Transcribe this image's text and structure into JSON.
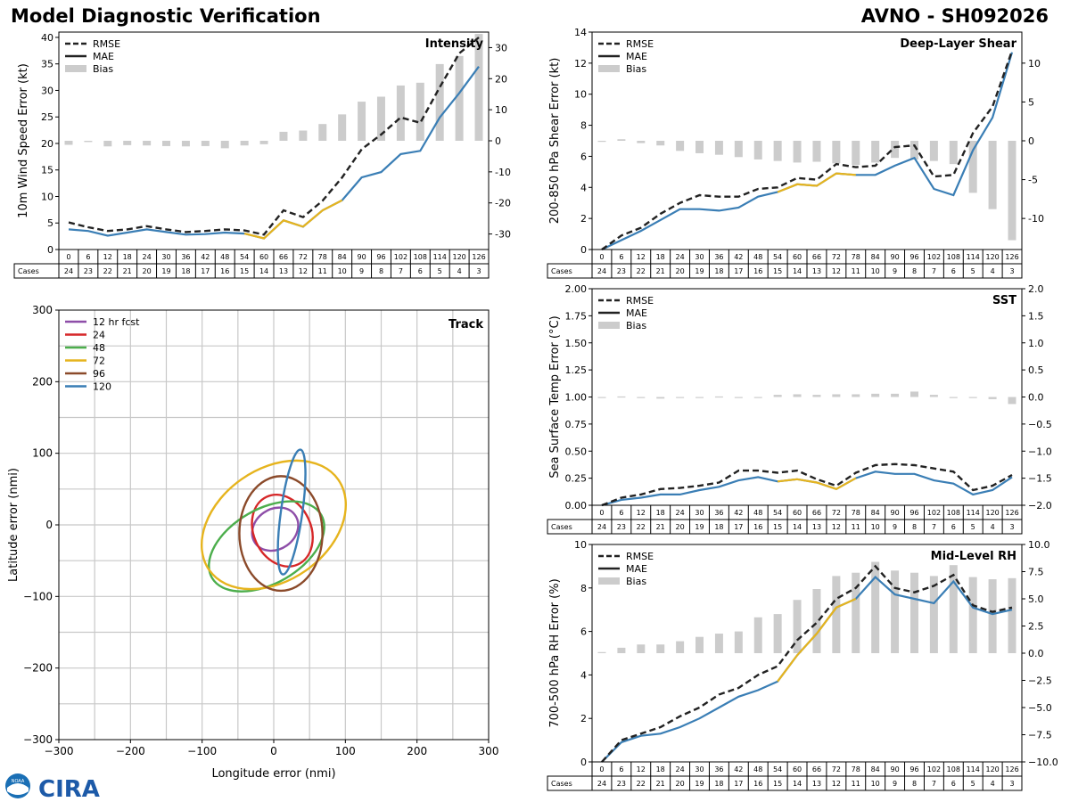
{
  "header": {
    "title": "Model Diagnostic Verification",
    "storm": "AVNO - SH092026"
  },
  "logo": {
    "text": "CIRA",
    "agency": "NOAA"
  },
  "colors": {
    "rmse": "#222222",
    "mae": "#3a7eb5",
    "mae_hl": "#e6b41e",
    "bias": "#cccccc",
    "grid": "#c8c8c8"
  },
  "common": {
    "cases_label": "Cases",
    "hours": [
      0,
      6,
      12,
      18,
      24,
      30,
      36,
      42,
      48,
      54,
      60,
      66,
      72,
      78,
      84,
      90,
      96,
      102,
      108,
      114,
      120,
      126
    ],
    "cases": [
      24,
      23,
      22,
      21,
      20,
      19,
      18,
      17,
      16,
      15,
      14,
      13,
      12,
      11,
      10,
      9,
      8,
      7,
      6,
      5,
      4,
      3
    ],
    "legend": [
      "RMSE",
      "MAE",
      "Bias"
    ]
  },
  "chart_data": [
    {
      "id": "intensity",
      "type": "line",
      "title": "Intensity",
      "ylabel": "10m Wind Speed Error (kt)",
      "ylim": [
        0,
        41
      ],
      "yticks": [
        0,
        5,
        10,
        15,
        20,
        25,
        30,
        35,
        40
      ],
      "y2lim": [
        -35,
        35
      ],
      "y2ticks": [
        -30,
        -20,
        -10,
        0,
        10,
        20,
        30
      ],
      "rmse": [
        5.1,
        4.2,
        3.5,
        3.8,
        4.4,
        3.8,
        3.3,
        3.5,
        3.8,
        3.6,
        2.8,
        7.4,
        6.1,
        9.2,
        13.6,
        18.9,
        21.7,
        24.9,
        23.9,
        30.6,
        37.0,
        40.0
      ],
      "mae": [
        3.8,
        3.5,
        2.6,
        3.2,
        3.8,
        3.3,
        2.8,
        2.9,
        3.2,
        3.0,
        2.1,
        5.5,
        4.3,
        7.4,
        9.3,
        13.6,
        14.6,
        18.0,
        18.6,
        24.9,
        29.5,
        34.5
      ],
      "mae_hl": [
        [
          9,
          12
        ],
        [
          12,
          14
        ]
      ],
      "bias": [
        -1.3,
        -0.4,
        -1.8,
        -1.4,
        -1.5,
        -1.7,
        -1.8,
        -1.7,
        -2.4,
        -1.5,
        -1.1,
        2.9,
        3.3,
        5.4,
        8.5,
        12.6,
        14.2,
        17.8,
        18.7,
        24.7,
        27.3,
        34.4
      ]
    },
    {
      "id": "shear",
      "type": "line",
      "title": "Deep-Layer Shear",
      "ylabel": "200-850 hPa Shear Error (kt)",
      "ylim": [
        0,
        14
      ],
      "yticks": [
        0,
        2,
        4,
        6,
        8,
        10,
        12,
        14
      ],
      "y2lim": [
        -14,
        14
      ],
      "y2ticks": [
        -10,
        -5,
        0,
        5,
        10
      ],
      "rmse": [
        0.0,
        0.9,
        1.4,
        2.3,
        3.0,
        3.5,
        3.4,
        3.4,
        3.9,
        4.0,
        4.6,
        4.5,
        5.5,
        5.3,
        5.4,
        6.6,
        6.7,
        4.7,
        4.8,
        7.5,
        9.2,
        12.8
      ],
      "mae": [
        0.0,
        0.6,
        1.2,
        1.9,
        2.6,
        2.6,
        2.5,
        2.7,
        3.4,
        3.7,
        4.2,
        4.1,
        4.9,
        4.8,
        4.8,
        5.4,
        5.9,
        3.9,
        3.5,
        6.4,
        8.5,
        12.7
      ],
      "mae_hl": [
        [
          9,
          13
        ]
      ],
      "bias": [
        0.0,
        0.2,
        -0.3,
        -0.6,
        -1.3,
        -1.6,
        -1.8,
        -2.1,
        -2.4,
        -2.6,
        -2.8,
        -2.7,
        -2.9,
        -3.1,
        -2.8,
        -2.2,
        -2.4,
        -2.6,
        -3.0,
        -6.7,
        -8.8,
        -12.8
      ]
    },
    {
      "id": "sst",
      "type": "line",
      "title": "SST",
      "ylabel": "Sea Surface Temp Error (°C)",
      "ylim": [
        0,
        2
      ],
      "yticks": [
        "0.00",
        "0.25",
        "0.50",
        "0.75",
        "1.00",
        "1.25",
        "1.50",
        "1.75",
        "2.00"
      ],
      "y2lim": [
        -2,
        2
      ],
      "y2ticks": [
        "−2.0",
        "−1.5",
        "−1.0",
        "−0.5",
        "0.0",
        "0.5",
        "1.0",
        "1.5",
        "2.0"
      ],
      "rmse": [
        0.0,
        0.07,
        0.1,
        0.15,
        0.16,
        0.18,
        0.21,
        0.32,
        0.32,
        0.3,
        0.32,
        0.24,
        0.18,
        0.3,
        0.37,
        0.38,
        0.37,
        0.34,
        0.31,
        0.14,
        0.18,
        0.28
      ],
      "mae": [
        0.0,
        0.05,
        0.07,
        0.1,
        0.1,
        0.14,
        0.17,
        0.23,
        0.26,
        0.22,
        0.24,
        0.21,
        0.15,
        0.25,
        0.31,
        0.29,
        0.29,
        0.23,
        0.2,
        0.1,
        0.14,
        0.26
      ],
      "mae_hl": [
        [
          9,
          13
        ]
      ],
      "bias": [
        0.0,
        0.01,
        -0.02,
        -0.03,
        -0.01,
        -0.01,
        0.01,
        -0.02,
        -0.01,
        0.04,
        0.05,
        0.04,
        0.05,
        0.05,
        0.06,
        0.06,
        0.1,
        0.04,
        -0.02,
        -0.02,
        -0.04,
        -0.13
      ]
    },
    {
      "id": "rh",
      "type": "line",
      "title": "Mid-Level RH",
      "ylabel": "700-500 hPa RH Error (%)",
      "ylim": [
        0,
        10
      ],
      "yticks": [
        0,
        2,
        4,
        6,
        8,
        10
      ],
      "y2lim": [
        -10,
        10
      ],
      "y2ticks": [
        "−10.0",
        "−7.5",
        "−5.0",
        "−2.5",
        "0.0",
        "2.5",
        "5.0",
        "7.5",
        "10.0"
      ],
      "rmse": [
        0.0,
        1.0,
        1.3,
        1.6,
        2.1,
        2.5,
        3.1,
        3.4,
        4.0,
        4.4,
        5.6,
        6.4,
        7.5,
        8.0,
        9.0,
        8.0,
        7.8,
        8.1,
        8.6,
        7.2,
        6.9,
        7.1
      ],
      "mae": [
        0.0,
        0.9,
        1.2,
        1.3,
        1.6,
        2.0,
        2.5,
        3.0,
        3.3,
        3.7,
        4.9,
        5.9,
        7.1,
        7.5,
        8.5,
        7.7,
        7.5,
        7.3,
        8.3,
        7.1,
        6.8,
        7.0
      ],
      "mae_hl": [
        [
          9,
          13
        ]
      ],
      "bias": [
        0.1,
        0.5,
        0.8,
        0.8,
        1.1,
        1.5,
        1.8,
        2.0,
        3.3,
        3.6,
        4.9,
        5.9,
        7.1,
        7.4,
        8.4,
        7.6,
        7.4,
        7.1,
        8.1,
        7.0,
        6.8,
        6.9
      ]
    },
    {
      "id": "track",
      "type": "scatter",
      "title": "Track",
      "xlabel": "Longitude error (nmi)",
      "ylabel": "Latitude error (nmi)",
      "xlim": [
        -300,
        300
      ],
      "ylim": [
        -300,
        300
      ],
      "xticks": [
        "−300",
        "−200",
        "−100",
        "0",
        "100",
        "200",
        "300"
      ],
      "yticks": [
        "−300",
        "−200",
        "−100",
        "0",
        "100",
        "200",
        "300"
      ],
      "ellipses": [
        {
          "label": "12 hr fcst",
          "color": "#8e4ea8",
          "cx": 2,
          "cy": -6,
          "rx": 34,
          "ry": 28,
          "angle": 35
        },
        {
          "label": "24",
          "color": "#d62728",
          "cx": 12,
          "cy": -8,
          "rx": 40,
          "ry": 52,
          "angle": 25
        },
        {
          "label": "48",
          "color": "#4cae4c",
          "cx": -10,
          "cy": -30,
          "rx": 88,
          "ry": 52,
          "angle": 30
        },
        {
          "label": "72",
          "color": "#e6b41e",
          "cx": 0,
          "cy": 0,
          "rx": 110,
          "ry": 78,
          "angle": 35
        },
        {
          "label": "96",
          "color": "#8b4a2a",
          "cx": 10,
          "cy": -12,
          "rx": 58,
          "ry": 80,
          "angle": 0
        },
        {
          "label": "120",
          "color": "#3a7eb5",
          "cx": 25,
          "cy": 18,
          "rx": 15,
          "ry": 88,
          "angle": -8
        }
      ]
    }
  ]
}
